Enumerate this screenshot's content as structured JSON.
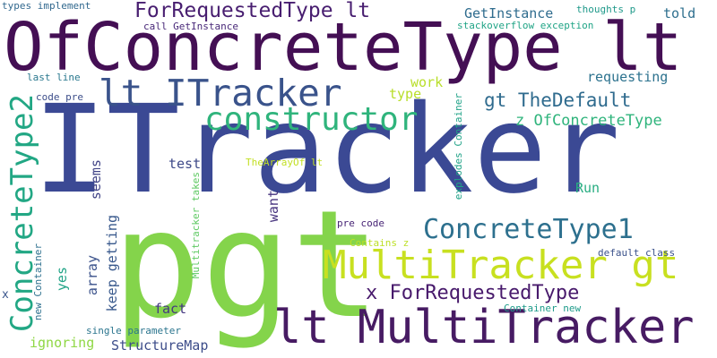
{
  "words": [
    {
      "text": "ITracker",
      "color": "#3b4994"
    },
    {
      "text": "pgt",
      "color": "#84d44b"
    },
    {
      "text": "OfConcreteType lt",
      "color": "#440f54"
    },
    {
      "text": "lt MultiTracker",
      "color": "#471b63"
    },
    {
      "text": "MultiTracker gt",
      "color": "#c8e020"
    },
    {
      "text": "lt ITracker",
      "color": "#3a538b"
    },
    {
      "text": "constructor",
      "color": "#2fb47c"
    },
    {
      "text": "ConcreteType2",
      "color": "#22a784"
    },
    {
      "text": "ConcreteType1",
      "color": "#2d708e"
    },
    {
      "text": "x ForRequestedType",
      "color": "#481a6c"
    },
    {
      "text": "ForRequestedType lt",
      "color": "#481e70"
    },
    {
      "text": "gt TheDefault",
      "color": "#2f6b8e"
    },
    {
      "text": "z OfConcreteType",
      "color": "#2fb47c"
    },
    {
      "text": "GetInstance",
      "color": "#2f6c8e"
    },
    {
      "text": "requesting",
      "color": "#2c728e"
    },
    {
      "text": "StructureMap",
      "color": "#3d4d8a"
    },
    {
      "text": "keep getting",
      "color": "#38588c"
    },
    {
      "text": "work",
      "color": "#b8de29"
    },
    {
      "text": "type",
      "color": "#b8de29"
    },
    {
      "text": "told",
      "color": "#2e6f8e"
    },
    {
      "text": "Run",
      "color": "#27ad81"
    },
    {
      "text": "test",
      "color": "#3e4a89"
    },
    {
      "text": "seems",
      "color": "#414487"
    },
    {
      "text": "want",
      "color": "#46337e"
    },
    {
      "text": "array",
      "color": "#3b528b"
    },
    {
      "text": "yes",
      "color": "#20a386"
    },
    {
      "text": "fact",
      "color": "#453781"
    },
    {
      "text": "ignoring",
      "color": "#8fd744"
    },
    {
      "text": "x",
      "color": "#39558c"
    },
    {
      "text": "types implement",
      "color": "#31688e"
    },
    {
      "text": "thoughts p",
      "color": "#1f998a"
    },
    {
      "text": "call GetInstance",
      "color": "#482878"
    },
    {
      "text": "stackoverflow exception",
      "color": "#20a486"
    },
    {
      "text": "last line",
      "color": "#2a788e"
    },
    {
      "text": "code pre",
      "color": "#3d4e8a"
    },
    {
      "text": "explodes Container",
      "color": "#1fa287"
    },
    {
      "text": "TheArrayOf lt",
      "color": "#c2df23"
    },
    {
      "text": "Multitracker takes",
      "color": "#5ec962"
    },
    {
      "text": "pre code",
      "color": "#482576"
    },
    {
      "text": "Contains z",
      "color": "#bddf26"
    },
    {
      "text": "default class",
      "color": "#3b528b"
    },
    {
      "text": "Container new",
      "color": "#1e9b8a"
    },
    {
      "text": "new Container",
      "color": "#2d708e"
    },
    {
      "text": "single parameter",
      "color": "#2b758e"
    }
  ]
}
